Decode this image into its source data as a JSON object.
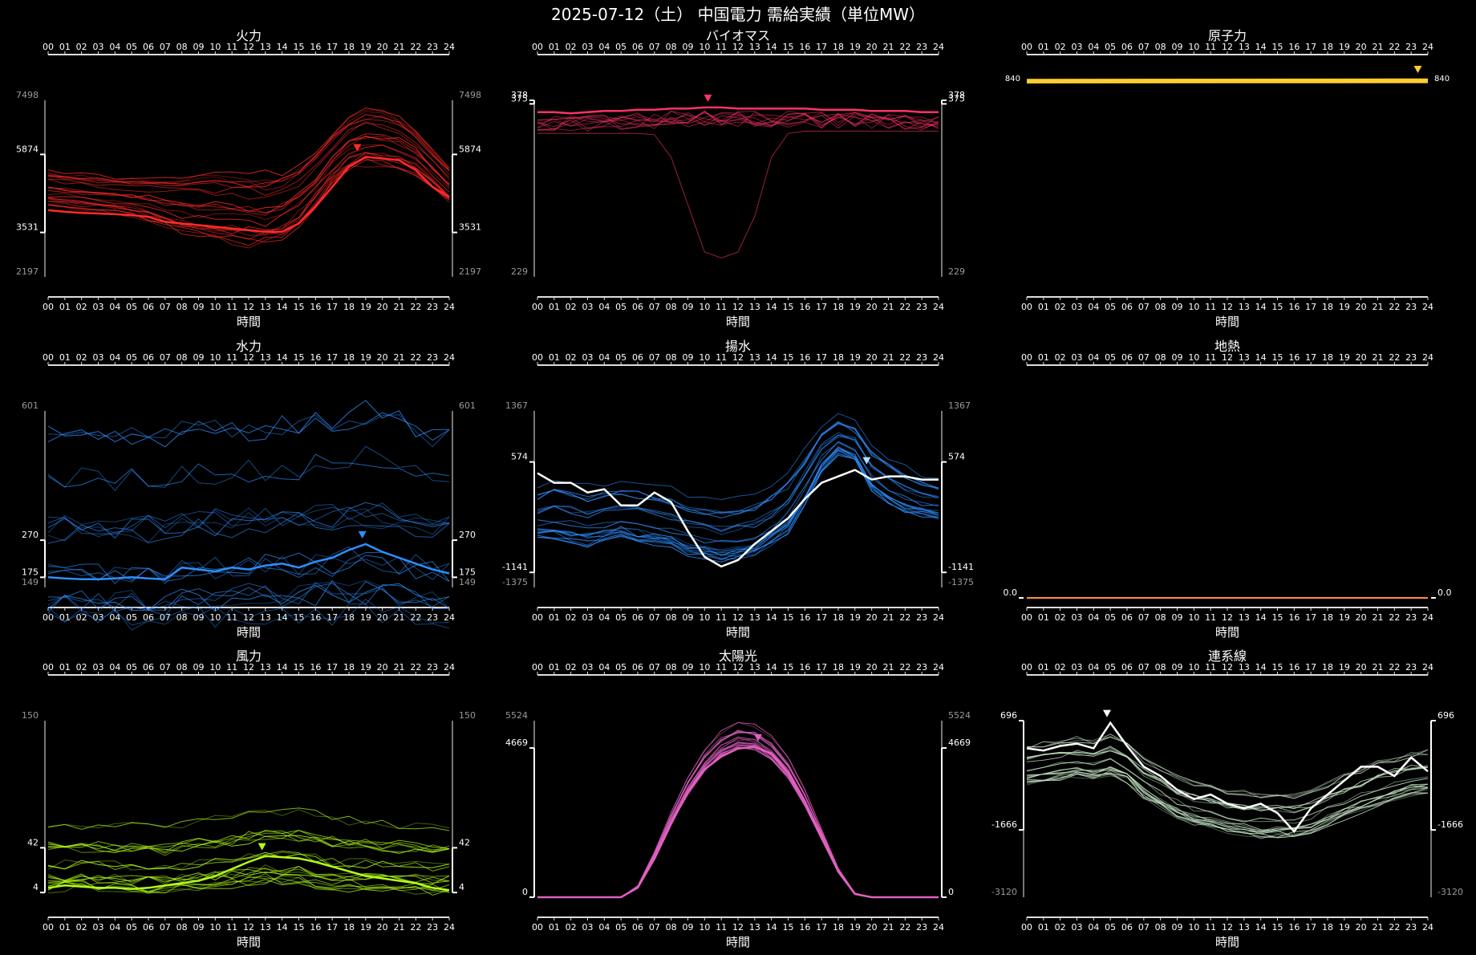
{
  "title": "2025-07-12（土） 中国電力 需給実績（単位MW）",
  "hours": [
    "00",
    "01",
    "02",
    "03",
    "04",
    "05",
    "06",
    "07",
    "08",
    "09",
    "10",
    "11",
    "12",
    "13",
    "14",
    "15",
    "16",
    "17",
    "18",
    "19",
    "20",
    "21",
    "22",
    "23",
    "24"
  ],
  "xlabel": "時間",
  "chart_data": [
    {
      "id": "thermal",
      "type": "line",
      "title": "火力",
      "color": "#ff2a2a",
      "ylim": [
        2197,
        7498
      ],
      "ticks_gray": [
        7498,
        2197
      ],
      "ticks_white": [
        5874,
        3531
      ],
      "peak_hour": 18.5,
      "series": [
        {
          "values": [
            4200,
            4150,
            4120,
            4100,
            4080,
            4050,
            4000,
            3850,
            3800,
            3750,
            3700,
            3650,
            3600,
            3550,
            3550,
            3800,
            4300,
            4900,
            5500,
            5800,
            5750,
            5700,
            5400,
            4900,
            4600
          ]
        }
      ],
      "envelope": {
        "mid": [
          4900,
          4850,
          4800,
          4750,
          4700,
          4650,
          4600,
          4500,
          4450,
          4400,
          4400,
          4350,
          4300,
          4300,
          4400,
          4700,
          5200,
          5800,
          6300,
          6500,
          6450,
          6300,
          6000,
          5500,
          5000
        ],
        "spread": [
          550,
          550,
          550,
          550,
          560,
          600,
          700,
          800,
          900,
          1000,
          1050,
          1100,
          1100,
          1100,
          1050,
          1000,
          900,
          800,
          850,
          900,
          900,
          850,
          700,
          600,
          550
        ]
      }
    },
    {
      "id": "biomass",
      "type": "line",
      "title": "バイオマス",
      "color": "#ff3366",
      "ylim": [
        229,
        378
      ],
      "ticks_gray": [
        229
      ],
      "ticks_white": [
        378,
        375
      ],
      "peak_hour": 10.2,
      "series": [
        {
          "values": [
            368,
            368,
            367,
            368,
            369,
            369,
            370,
            370,
            371,
            371,
            372,
            372,
            371,
            371,
            371,
            371,
            371,
            370,
            370,
            370,
            369,
            369,
            369,
            368,
            368
          ]
        }
      ],
      "dip": {
        "values": [
          350,
          350,
          350,
          350,
          350,
          350,
          350,
          349,
          330,
          290,
          250,
          245,
          250,
          280,
          330,
          350,
          352,
          352,
          352,
          352,
          352,
          352,
          352,
          352,
          352
        ]
      }
    },
    {
      "id": "nuclear",
      "type": "line",
      "title": "原子力",
      "color": "#ffcc33",
      "ylim": [
        0,
        840
      ],
      "ticks_gray": [],
      "ticks_white": [],
      "peak_hour": 23.4,
      "series": [
        {
          "values": [
            830,
            830,
            831,
            830,
            830,
            831,
            830,
            830,
            831,
            830,
            830,
            830,
            831,
            830,
            830,
            830,
            831,
            830,
            830,
            830,
            830,
            831,
            830,
            830,
            830
          ]
        }
      ]
    },
    {
      "id": "hydro",
      "type": "line",
      "title": "水力",
      "color": "#2e8fff",
      "ylim": [
        149,
        601
      ],
      "ticks_gray": [
        601,
        149
      ],
      "ticks_white": [
        270,
        175
      ],
      "peak_hour": 18.8,
      "series": [
        {
          "values": [
            175,
            172,
            170,
            170,
            172,
            175,
            172,
            170,
            200,
            195,
            190,
            200,
            195,
            205,
            210,
            200,
            215,
            225,
            245,
            260,
            240,
            225,
            210,
            195,
            185
          ]
        }
      ],
      "envelope": {
        "mid": [
          300,
          300,
          298,
          296,
          298,
          300,
          298,
          296,
          310,
          312,
          310,
          315,
          318,
          320,
          322,
          320,
          325,
          330,
          338,
          342,
          335,
          325,
          315,
          305,
          300
        ],
        "spread": [
          240,
          240,
          240,
          240,
          240,
          240,
          240,
          240,
          245,
          245,
          245,
          245,
          245,
          248,
          250,
          250,
          252,
          255,
          258,
          260,
          255,
          250,
          245,
          240,
          240
        ]
      }
    },
    {
      "id": "pumped",
      "type": "line",
      "title": "揚水",
      "color": "#2e8fff",
      "ylim": [
        -1375,
        1367
      ],
      "ticks_gray": [
        1367,
        -1375
      ],
      "ticks_white": [
        574,
        -1141
      ],
      "peak_hour": 19.7,
      "series": [
        {
          "name": "",
          "values": [
            400,
            250,
            250,
            100,
            150,
            -100,
            -100,
            100,
            -50,
            -500,
            -900,
            -1050,
            -950,
            -700,
            -500,
            -300,
            0,
            250,
            350,
            450,
            300,
            350,
            350,
            300,
            300
          ]
        }
      ],
      "envelope": {
        "mid": [
          -200,
          -150,
          -200,
          -250,
          -200,
          -150,
          -200,
          -250,
          -300,
          -400,
          -450,
          -500,
          -450,
          -400,
          -250,
          -50,
          350,
          800,
          1000,
          900,
          500,
          300,
          150,
          50,
          0
        ],
        "spread": [
          400,
          450,
          450,
          450,
          450,
          450,
          450,
          450,
          450,
          450,
          450,
          450,
          450,
          450,
          450,
          450,
          400,
          350,
          300,
          300,
          350,
          350,
          350,
          300,
          300
        ]
      }
    },
    {
      "id": "geothermal",
      "type": "line",
      "title": "地熱",
      "color": "#ff8c42",
      "ylim": [
        0,
        1
      ],
      "ticks_gray": [],
      "ticks_white": [
        "0.0"
      ],
      "peak_hour": null,
      "series": [
        {
          "values": [
            0,
            0,
            0,
            0,
            0,
            0,
            0,
            0,
            0,
            0,
            0,
            0,
            0,
            0,
            0,
            0,
            0,
            0,
            0,
            0,
            0,
            0,
            0,
            0,
            0
          ]
        }
      ]
    },
    {
      "id": "wind",
      "type": "line",
      "title": "風力",
      "color": "#b3ff1a",
      "ylim": [
        0,
        150
      ],
      "ticks_gray": [
        150
      ],
      "ticks_white": [
        42,
        4
      ],
      "peak_hour": 12.8,
      "series": [
        {
          "values": [
            8,
            10,
            9,
            8,
            8,
            7,
            8,
            10,
            12,
            14,
            18,
            24,
            30,
            35,
            34,
            33,
            30,
            26,
            22,
            18,
            16,
            14,
            12,
            8,
            6
          ]
        }
      ],
      "envelope": {
        "mid": [
          40,
          41,
          41,
          40,
          40,
          39,
          38,
          38,
          40,
          42,
          44,
          46,
          48,
          50,
          50,
          49,
          47,
          45,
          43,
          42,
          41,
          40,
          40,
          39,
          39
        ],
        "spread": [
          34,
          34,
          34,
          34,
          34,
          34,
          34,
          34,
          35,
          36,
          37,
          38,
          38,
          38,
          38,
          38,
          38,
          37,
          36,
          36,
          36,
          35,
          35,
          35,
          35
        ]
      }
    },
    {
      "id": "solar",
      "type": "line",
      "title": "太陽光",
      "color": "#e060c0",
      "ylim": [
        0,
        5524
      ],
      "ticks_gray": [
        5524
      ],
      "ticks_white": [
        4669,
        0
      ],
      "peak_hour": 13.2,
      "series": [
        {
          "values": [
            0,
            0,
            0,
            0,
            0,
            0,
            300,
            1200,
            2300,
            3300,
            4000,
            4400,
            4650,
            4700,
            4500,
            3900,
            3000,
            1900,
            800,
            100,
            0,
            0,
            0,
            0,
            0
          ]
        }
      ],
      "envelope": {
        "mid": [
          0,
          0,
          0,
          0,
          0,
          0,
          330,
          1330,
          2500,
          3550,
          4350,
          4880,
          5120,
          5080,
          4720,
          4100,
          3150,
          2000,
          850,
          120,
          0,
          0,
          0,
          0,
          0
        ],
        "spread": [
          0,
          0,
          0,
          0,
          0,
          0,
          40,
          120,
          220,
          330,
          400,
          450,
          470,
          460,
          440,
          390,
          300,
          190,
          80,
          15,
          0,
          0,
          0,
          0,
          0
        ]
      }
    },
    {
      "id": "interconnect",
      "type": "line",
      "title": "連系線",
      "color": "#c8e6c8",
      "ylim": [
        -3120,
        696
      ],
      "ticks_gray": [
        -3120
      ],
      "ticks_white": [
        696,
        -1666
      ],
      "peak_hour": 4.8,
      "series": [
        {
          "values": [
            100,
            50,
            150,
            200,
            100,
            650,
            150,
            -300,
            -500,
            -800,
            -1000,
            -900,
            -1100,
            -1200,
            -1100,
            -1300,
            -1700,
            -1200,
            -900,
            -600,
            -300,
            -300,
            -500,
            -100,
            -400
          ]
        }
      ],
      "envelope": {
        "mid": [
          -200,
          -150,
          -100,
          -50,
          -100,
          0,
          -150,
          -500,
          -700,
          -900,
          -1050,
          -1100,
          -1200,
          -1250,
          -1300,
          -1300,
          -1300,
          -1200,
          -1050,
          -900,
          -750,
          -600,
          -500,
          -400,
          -350
        ],
        "spread": [
          500,
          500,
          500,
          500,
          500,
          500,
          500,
          500,
          520,
          540,
          550,
          550,
          550,
          550,
          550,
          550,
          550,
          550,
          550,
          550,
          550,
          550,
          550,
          550,
          550
        ]
      }
    }
  ]
}
